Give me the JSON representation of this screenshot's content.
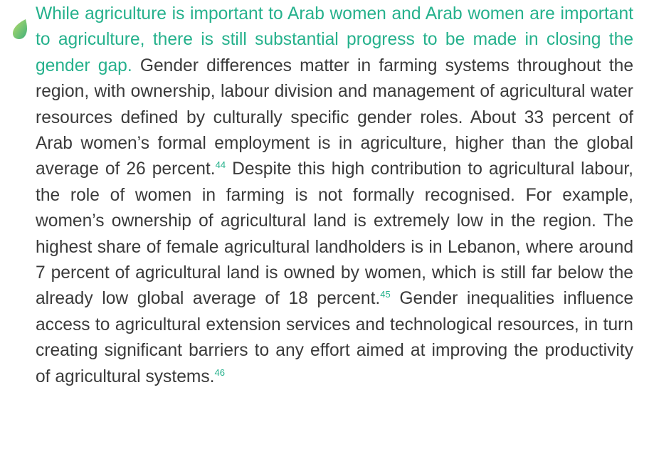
{
  "paragraph": {
    "lead": "While agriculture is important to Arab women and Arab women are important to agriculture, there is still substantial progress to be made in closing the gender gap.",
    "text_1": " Gender differences matter in farming systems throughout the region, with ownership, labour division and management of agricultural water resources defined by culturally specific gender roles. About 33 percent of Arab women’s formal employment is in agriculture, higher than the global average of 26 percent.",
    "footnote_1": "44",
    "text_2": " Despite this high contribution to agricultural labour, the role of women in farming is not formally recognised. For example, women’s ownership of agricultural land is extremely low in the region. The highest share of female agricultural landholders is in Lebanon, where around 7 percent of agricultural land is owned by women, which is still far below the already low global average of 18 percent.",
    "footnote_2": "45",
    "text_3": " Gender inequalities influence access to agricultural extension services and technological resources, in turn creating significant barriers to any effort aimed at improving the productivity of agricultural systems.",
    "footnote_3": "46"
  }
}
